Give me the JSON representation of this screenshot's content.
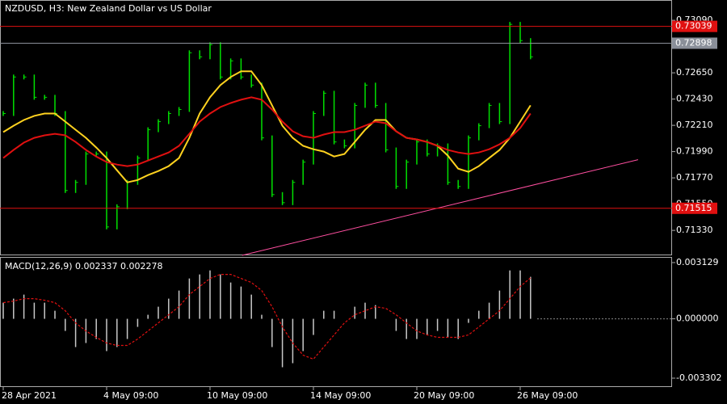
{
  "chart_data": [
    {
      "type": "price-bars",
      "title": "NZDUSD, H3:  New Zealand Dollar vs US Dollar",
      "color": "#00e000",
      "values": [
        0.72309,
        0.72615,
        0.72615,
        0.72445,
        0.72445,
        0.72309,
        0.71664,
        0.71732,
        0.7197,
        0.7197,
        0.71359,
        0.71528,
        0.71732,
        0.71936,
        0.72173,
        0.72241,
        0.72309,
        0.72343,
        0.72818,
        0.72784,
        0.72886,
        0.72615,
        0.7275,
        0.72615,
        0.72547,
        0.72105,
        0.7163,
        0.71562,
        0.71732,
        0.71902,
        0.72309,
        0.72479,
        0.72071,
        0.72038,
        0.72377,
        0.72547,
        0.72377,
        0.72004,
        0.71698,
        0.71902,
        0.72071,
        0.7197,
        0.72038,
        0.71732,
        0.71698,
        0.72105,
        0.72207,
        0.72377,
        0.72241,
        0.73056,
        0.7292,
        0.72784
      ],
      "lines": [
        {
          "color": "#ffd21f",
          "values": [
            0.72153,
            0.72207,
            0.72255,
            0.72289,
            0.72309,
            0.72309,
            0.72241,
            0.72173,
            0.72105,
            0.72024,
            0.71936,
            0.71834,
            0.71732,
            0.71752,
            0.71793,
            0.71827,
            0.71868,
            0.71936,
            0.72105,
            0.72309,
            0.72445,
            0.72547,
            0.72615,
            0.72662,
            0.72662,
            0.72547,
            0.72377,
            0.72207,
            0.72105,
            0.72038,
            0.7201,
            0.7199,
            0.71949,
            0.7197,
            0.72071,
            0.72173,
            0.72255,
            0.72255,
            0.7216,
            0.72105,
            0.72092,
            0.72071,
            0.72038,
            0.71956,
            0.71847,
            0.7182,
            0.71868,
            0.71936,
            0.72004,
            0.72105,
            0.72241,
            0.72377
          ]
        },
        {
          "color": "#e01010",
          "values": [
            0.71936,
            0.72004,
            0.72065,
            0.72105,
            0.72126,
            0.72139,
            0.72126,
            0.72071,
            0.72004,
            0.71949,
            0.71902,
            0.71881,
            0.71868,
            0.71881,
            0.71915,
            0.71949,
            0.71983,
            0.72038,
            0.72139,
            0.72241,
            0.72309,
            0.72363,
            0.72397,
            0.72425,
            0.72445,
            0.72425,
            0.72343,
            0.72241,
            0.7216,
            0.72119,
            0.72105,
            0.72133,
            0.72153,
            0.72153,
            0.72173,
            0.72207,
            0.72241,
            0.72228,
            0.7216,
            0.72105,
            0.72092,
            0.72071,
            0.72038,
            0.72004,
            0.71983,
            0.7197,
            0.71983,
            0.7201,
            0.72051,
            0.72105,
            0.72187,
            0.72309
          ]
        }
      ],
      "hlines": [
        {
          "value": 0.73039,
          "color": "#e01010"
        },
        {
          "value": 0.72898,
          "color": "#8a8f99"
        },
        {
          "value": 0.71515,
          "color": "#e01010"
        }
      ],
      "trendline": {
        "x": [
          23.1,
          61.4
        ],
        "values": [
          0.71121,
          0.71922
        ],
        "color": "#ff4fa0"
      },
      "ylim": [
        0.71121,
        0.7326
      ],
      "yticks": [
        {
          "value": 0.7309,
          "label": "0.73090"
        },
        {
          "value": 0.7265,
          "label": "0.72650"
        },
        {
          "value": 0.7243,
          "label": "0.72430"
        },
        {
          "value": 0.7221,
          "label": "0.72210"
        },
        {
          "value": 0.7199,
          "label": "0.71990"
        },
        {
          "value": 0.7177,
          "label": "0.71770"
        },
        {
          "value": 0.7155,
          "label": "0.71550"
        },
        {
          "value": 0.7133,
          "label": "0.71330"
        }
      ]
    },
    {
      "type": "macd",
      "title": "MACD(12,26,9) 0.002337 0.002278",
      "categories": [
        "28 Apr 2021",
        null,
        null,
        null,
        null,
        null,
        null,
        null,
        null,
        null,
        "4 May 09:00",
        null,
        null,
        null,
        null,
        null,
        null,
        null,
        null,
        null,
        "10 May 09:00",
        null,
        null,
        null,
        null,
        null,
        null,
        null,
        null,
        null,
        "14 May 09:00",
        null,
        null,
        null,
        null,
        null,
        null,
        null,
        null,
        null,
        "20 May 09:00",
        null,
        null,
        null,
        null,
        null,
        null,
        null,
        null,
        null,
        "26 May 09:00",
        null
      ],
      "values": [
        0.000898,
        0.001123,
        0.001347,
        0.000898,
        0.000898,
        0.000449,
        -0.000674,
        -0.001572,
        -0.001347,
        -0.001123,
        -0.001796,
        -0.001572,
        -0.001123,
        -0.000449,
        0.000225,
        0.000674,
        0.001123,
        0.001572,
        0.002245,
        0.00247,
        0.002694,
        0.00247,
        0.002021,
        0.001796,
        0.001347,
        0.000225,
        -0.001572,
        -0.002694,
        -0.00247,
        -0.001796,
        -0.000898,
        0.000449,
        0.000449,
        0,
        0.000674,
        0.000898,
        0.000763,
        0,
        -0.000674,
        -0.001123,
        -0.001123,
        -0.000898,
        -0.000674,
        -0.001033,
        -0.001123,
        -0.000225,
        0.000449,
        0.000898,
        0.001572,
        0.002694,
        0.002694,
        0.002337
      ],
      "color": "#c8c8c8",
      "signal": {
        "color": "#e01010",
        "values": [
          0.000898,
          0.000988,
          0.001123,
          0.001123,
          0.001033,
          0.000898,
          0.000449,
          -0.000225,
          -0.000674,
          -0.001033,
          -0.001347,
          -0.001482,
          -0.001482,
          -0.001123,
          -0.000674,
          -0.000225,
          0.000225,
          0.000674,
          0.001347,
          0.001796,
          0.002245,
          0.00247,
          0.00247,
          0.002245,
          0.002021,
          0.001572,
          0.000674,
          -0.000449,
          -0.001347,
          -0.002021,
          -0.002245,
          -0.001572,
          -0.000898,
          -0.000225,
          0.000225,
          0.000449,
          0.000674,
          0.000584,
          0.000225,
          -0.000225,
          -0.000674,
          -0.000898,
          -0.001033,
          -0.001033,
          -0.001033,
          -0.000898,
          -0.000449,
          0,
          0.000449,
          0.001123,
          0.001796,
          0.002278
        ]
      },
      "ylim": [
        -0.003751,
        0.003443
      ],
      "yticks": [
        0.003129,
        {
          "value": 0,
          "label": "0.000000"
        },
        -0.003302
      ]
    }
  ]
}
